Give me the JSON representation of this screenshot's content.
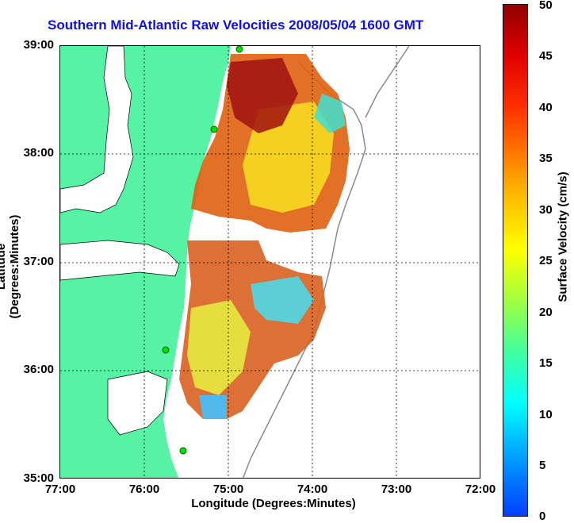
{
  "title": "Southern Mid-Atlantic Raw Velocities 2008/05/04 1600 GMT",
  "axes": {
    "xlabel": "Longitude (Degrees:Minutes)",
    "ylabel": "Latitude (Degrees:Minutes)",
    "x_ticks": [
      "77:00",
      "76:00",
      "75:00",
      "74:00",
      "73:00",
      "72:00"
    ],
    "y_ticks": [
      "39:00",
      "38:00",
      "37:00",
      "36:00",
      "35:00"
    ]
  },
  "colorbar": {
    "label": "Surface Velocity (cm/s)",
    "ticks": [
      "50",
      "45",
      "40",
      "35",
      "30",
      "25",
      "20",
      "15",
      "10",
      "5",
      "0"
    ],
    "range": [
      0,
      50
    ]
  },
  "colors": {
    "title": "#1010e0",
    "land": "#55f3a3",
    "station": "#00e000"
  }
}
